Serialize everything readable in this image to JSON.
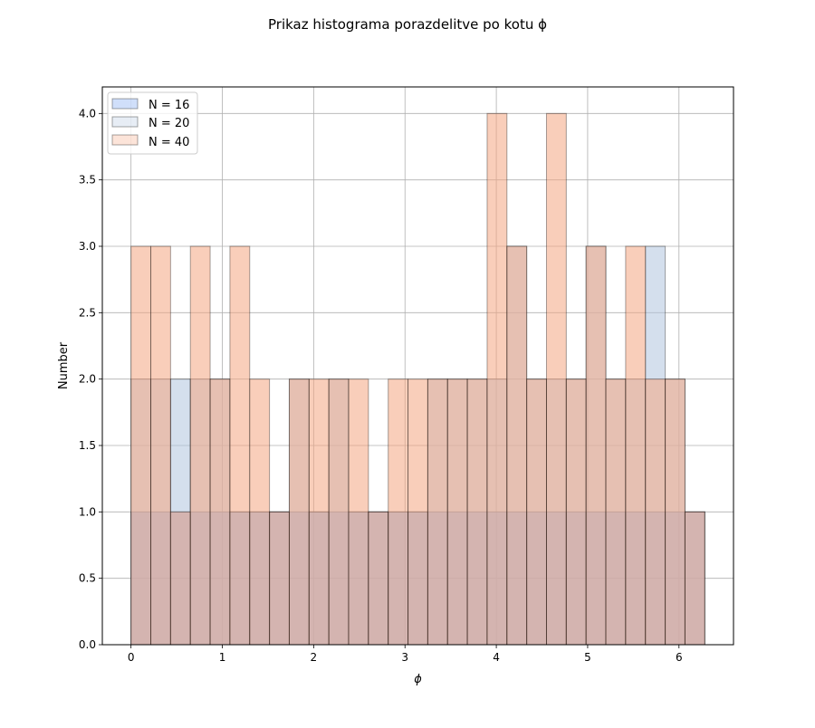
{
  "chart_data": {
    "type": "bar",
    "title": "Prikaz histograma porazdelitve po kotu ϕ",
    "xlabel": "ϕ",
    "ylabel": "Number",
    "xlim": [
      -0.314,
      6.597
    ],
    "ylim": [
      0,
      4.2
    ],
    "x_ticks": [
      0,
      1,
      2,
      3,
      4,
      5,
      6
    ],
    "x_tick_labels": [
      "0",
      "1",
      "2",
      "3",
      "4",
      "5",
      "6"
    ],
    "y_ticks": [
      0.0,
      0.5,
      1.0,
      1.5,
      2.0,
      2.5,
      3.0,
      3.5,
      4.0
    ],
    "y_tick_labels": [
      "0.0",
      "0.5",
      "1.0",
      "1.5",
      "2.0",
      "2.5",
      "3.0",
      "3.5",
      "4.0"
    ],
    "grid": true,
    "legend_position": "top-left",
    "bin_edges": [
      0,
      0.2166,
      0.4333,
      0.6499,
      0.8666,
      1.0832,
      1.2998,
      1.5165,
      1.7331,
      1.9497,
      2.1664,
      2.383,
      2.5997,
      2.8163,
      3.0329,
      3.2496,
      3.4662,
      3.6828,
      3.8995,
      4.1161,
      4.3328,
      4.5494,
      4.766,
      4.9827,
      5.1993,
      5.4159,
      5.6326,
      5.8492,
      6.0659,
      6.2825
    ],
    "series": [
      {
        "name": "N = 16",
        "color": "#6495ed",
        "values": [
          1,
          1,
          1,
          1,
          1,
          1,
          1,
          1,
          1,
          1,
          1,
          1,
          1,
          1,
          1,
          1,
          1,
          1,
          1,
          1,
          1,
          1,
          1,
          1,
          1,
          1,
          1,
          1,
          1
        ]
      },
      {
        "name": "N = 20",
        "color": "#b0c4de",
        "values": [
          2,
          2,
          2,
          2,
          2,
          1,
          1,
          1,
          2,
          1,
          2,
          1,
          1,
          1,
          1,
          2,
          2,
          2,
          2,
          3,
          2,
          2,
          2,
          3,
          2,
          2,
          3,
          2,
          1
        ]
      },
      {
        "name": "N = 40",
        "color": "#f4a582",
        "values": [
          3,
          3,
          1,
          3,
          2,
          3,
          2,
          1,
          2,
          2,
          2,
          2,
          1,
          2,
          2,
          2,
          2,
          2,
          4,
          3,
          2,
          4,
          2,
          3,
          2,
          3,
          2,
          2,
          1
        ]
      }
    ]
  }
}
